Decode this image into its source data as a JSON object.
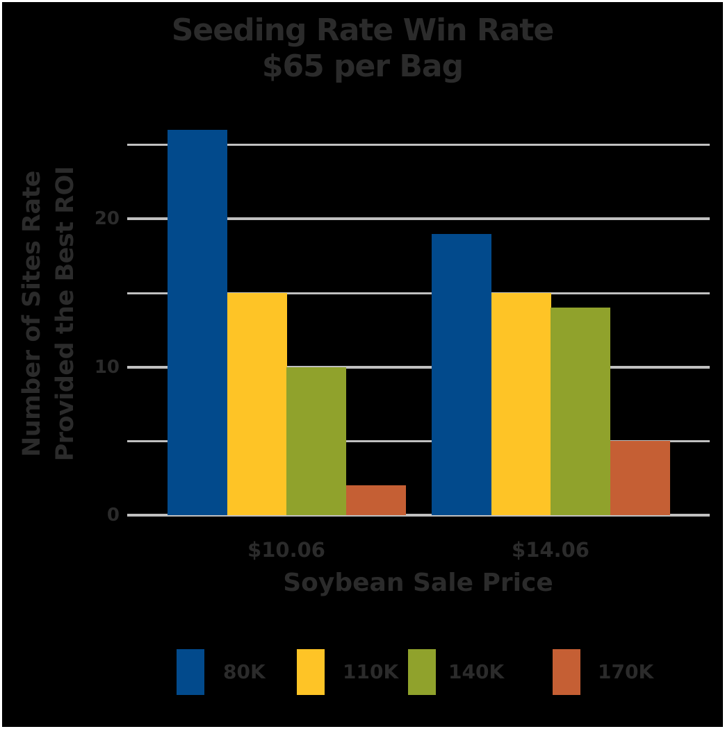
{
  "chart_data": {
    "type": "bar",
    "title": "Seeding Rate Win Rate\n$65 per Bag",
    "title_lines": [
      "Seeding Rate Win Rate",
      "$65 per Bag"
    ],
    "xlabel": "Soybean Sale Price",
    "ylabel": "Number of Sites Rate Provided the Best ROI",
    "ylabel_lines": [
      "Number of Sites Rate",
      "Provided the Best ROI"
    ],
    "categories": [
      "$10.06",
      "$14.06"
    ],
    "series": [
      {
        "name": "80K",
        "color": "#024a8c",
        "values": [
          26,
          19
        ]
      },
      {
        "name": "110K",
        "color": "#fec426",
        "values": [
          15,
          15
        ]
      },
      {
        "name": "140K",
        "color": "#90a22c",
        "values": [
          10,
          14
        ]
      },
      {
        "name": "170K",
        "color": "#c55f34",
        "values": [
          2,
          5
        ]
      }
    ],
    "y_ticks": [
      0,
      10,
      20
    ],
    "gridlines": [
      0,
      5,
      10,
      15,
      20,
      25
    ],
    "ylim": [
      0,
      27
    ],
    "grid": true,
    "legend_position": "bottom",
    "background": "#000000",
    "text_color": "#2b2b2b",
    "grid_color": "#c0c0c0"
  }
}
